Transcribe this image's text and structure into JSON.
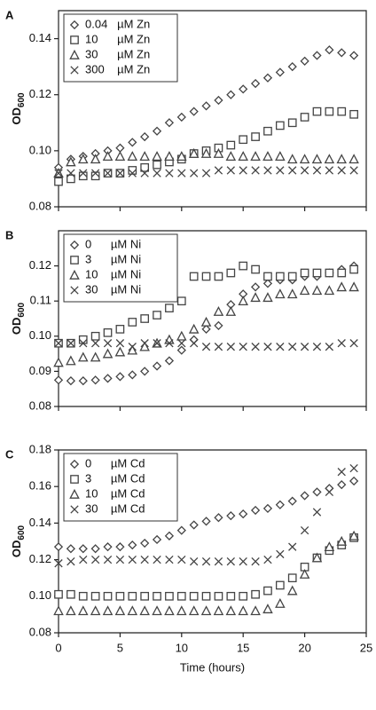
{
  "chart_data": [
    {
      "type": "scatter",
      "label": "A",
      "ylabel": "OD",
      "ylabel_subscript": "600",
      "x": [
        0,
        1,
        2,
        3,
        4,
        5,
        6,
        7,
        8,
        9,
        10,
        11,
        12,
        13,
        14,
        15,
        16,
        17,
        18,
        19,
        20,
        21,
        22,
        23,
        24
      ],
      "xlim": [
        0,
        25
      ],
      "xticks": [
        0,
        5,
        10,
        15,
        20,
        25
      ],
      "xtick_labels": false,
      "ylim": [
        0.08,
        0.15
      ],
      "yticks": [
        0.08,
        {
          "value": 0.1,
          "label": "0.10"
        },
        0.12,
        0.14
      ],
      "series": [
        {
          "name": "0.04   µM Zn",
          "marker": "diamond",
          "color": "#444",
          "values": [
            0.094,
            0.097,
            0.098,
            0.099,
            0.1,
            0.101,
            0.103,
            0.105,
            0.107,
            0.11,
            0.112,
            0.114,
            0.116,
            0.118,
            0.12,
            0.122,
            0.124,
            0.126,
            0.128,
            0.13,
            0.132,
            0.134,
            0.136,
            0.135,
            0.134
          ]
        },
        {
          "name": "10      µM Zn",
          "marker": "square",
          "color": "#444",
          "values": [
            0.089,
            0.09,
            0.091,
            0.091,
            0.092,
            0.092,
            0.093,
            0.094,
            0.095,
            0.096,
            0.097,
            0.099,
            0.1,
            0.101,
            0.102,
            0.104,
            0.105,
            0.107,
            0.109,
            0.11,
            0.112,
            0.114,
            0.114,
            0.114,
            0.113
          ]
        },
        {
          "name": "30      µM Zn",
          "marker": "triangle",
          "color": "#444",
          "values": [
            0.092,
            0.096,
            0.097,
            0.097,
            0.098,
            0.098,
            0.098,
            0.098,
            0.098,
            0.098,
            0.098,
            0.099,
            0.099,
            0.099,
            0.098,
            0.098,
            0.098,
            0.098,
            0.098,
            0.097,
            0.097,
            0.097,
            0.097,
            0.097,
            0.097
          ]
        },
        {
          "name": "300    µM Zn",
          "marker": "x",
          "color": "#444",
          "values": [
            0.092,
            0.092,
            0.092,
            0.092,
            0.092,
            0.092,
            0.092,
            0.092,
            0.092,
            0.092,
            0.092,
            0.092,
            0.092,
            0.093,
            0.093,
            0.093,
            0.093,
            0.093,
            0.093,
            0.093,
            0.093,
            0.093,
            0.093,
            0.093,
            0.093
          ]
        }
      ]
    },
    {
      "type": "scatter",
      "label": "B",
      "ylabel": "OD",
      "ylabel_subscript": "600",
      "x": [
        0,
        1,
        2,
        3,
        4,
        5,
        6,
        7,
        8,
        9,
        10,
        11,
        12,
        13,
        14,
        15,
        16,
        17,
        18,
        19,
        20,
        21,
        22,
        23,
        24
      ],
      "xlim": [
        0,
        25
      ],
      "xticks": [
        0,
        5,
        10,
        15,
        20,
        25
      ],
      "xtick_labels": false,
      "ylim": [
        0.08,
        0.13
      ],
      "yticks": [
        0.08,
        0.09,
        {
          "value": 0.1,
          "label": "0.10"
        },
        0.11,
        0.12
      ],
      "series": [
        {
          "name": "0      µM Ni",
          "marker": "diamond",
          "color": "#444",
          "values": [
            0.0875,
            0.0873,
            0.0873,
            0.0875,
            0.088,
            0.0885,
            0.089,
            0.09,
            0.0915,
            0.093,
            0.096,
            0.099,
            0.102,
            0.103,
            0.109,
            0.112,
            0.114,
            0.115,
            0.116,
            0.116,
            0.117,
            0.117,
            0.118,
            0.119,
            0.12
          ]
        },
        {
          "name": "3      µM Ni",
          "marker": "square",
          "color": "#444",
          "values": [
            0.098,
            0.098,
            0.099,
            0.1,
            0.101,
            0.102,
            0.104,
            0.105,
            0.106,
            0.108,
            0.11,
            0.117,
            0.117,
            0.117,
            0.118,
            0.12,
            0.119,
            0.117,
            0.117,
            0.117,
            0.118,
            0.118,
            0.118,
            0.118,
            0.119
          ]
        },
        {
          "name": "10    µM Ni",
          "marker": "triangle",
          "color": "#444",
          "values": [
            0.0925,
            0.093,
            0.094,
            0.094,
            0.095,
            0.0955,
            0.096,
            0.097,
            0.098,
            0.099,
            0.1,
            0.102,
            0.104,
            0.107,
            0.107,
            0.11,
            0.111,
            0.111,
            0.112,
            0.112,
            0.113,
            0.113,
            0.113,
            0.114,
            0.114
          ]
        },
        {
          "name": "30    µM Ni",
          "marker": "x",
          "color": "#444",
          "values": [
            0.098,
            0.098,
            0.098,
            0.098,
            0.098,
            0.098,
            0.097,
            0.098,
            0.098,
            0.098,
            0.098,
            0.098,
            0.097,
            0.097,
            0.097,
            0.097,
            0.097,
            0.097,
            0.097,
            0.097,
            0.097,
            0.097,
            0.097,
            0.098,
            0.098
          ]
        }
      ]
    },
    {
      "type": "scatter",
      "label": "C",
      "ylabel": "OD",
      "ylabel_subscript": "600",
      "xlabel": "Time (hours)",
      "x": [
        0,
        1,
        2,
        3,
        4,
        5,
        6,
        7,
        8,
        9,
        10,
        11,
        12,
        13,
        14,
        15,
        16,
        17,
        18,
        19,
        20,
        21,
        22,
        23,
        24
      ],
      "xlim": [
        0,
        25
      ],
      "xticks": [
        0,
        5,
        10,
        15,
        20,
        25
      ],
      "xtick_labels": true,
      "ylim": [
        0.08,
        0.18
      ],
      "yticks": [
        0.08,
        {
          "value": 0.1,
          "label": "0.10"
        },
        0.12,
        0.14,
        0.16,
        0.18
      ],
      "series": [
        {
          "name": "0      µM Cd",
          "marker": "diamond",
          "color": "#444",
          "values": [
            0.127,
            0.126,
            0.126,
            0.126,
            0.127,
            0.127,
            0.128,
            0.129,
            0.131,
            0.133,
            0.136,
            0.139,
            0.141,
            0.143,
            0.144,
            0.145,
            0.147,
            0.148,
            0.15,
            0.152,
            0.155,
            0.157,
            0.159,
            0.161,
            0.163
          ]
        },
        {
          "name": "3      µM Cd",
          "marker": "square",
          "color": "#444",
          "values": [
            0.101,
            0.101,
            0.1,
            0.1,
            0.1,
            0.1,
            0.1,
            0.1,
            0.1,
            0.1,
            0.1,
            0.1,
            0.1,
            0.1,
            0.1,
            0.1,
            0.101,
            0.103,
            0.106,
            0.11,
            0.116,
            0.121,
            0.125,
            0.128,
            0.132
          ]
        },
        {
          "name": "10    µM Cd",
          "marker": "triangle",
          "color": "#444",
          "values": [
            0.092,
            0.092,
            0.092,
            0.092,
            0.092,
            0.092,
            0.092,
            0.092,
            0.092,
            0.092,
            0.092,
            0.092,
            0.092,
            0.092,
            0.092,
            0.092,
            0.092,
            0.093,
            0.096,
            0.103,
            0.112,
            0.121,
            0.127,
            0.13,
            0.133
          ]
        },
        {
          "name": "30    µM Cd",
          "marker": "x",
          "color": "#444",
          "values": [
            0.118,
            0.119,
            0.12,
            0.12,
            0.12,
            0.12,
            0.12,
            0.12,
            0.12,
            0.12,
            0.12,
            0.119,
            0.119,
            0.119,
            0.119,
            0.119,
            0.119,
            0.12,
            0.123,
            0.127,
            0.136,
            0.146,
            0.157,
            0.168,
            0.17
          ]
        }
      ]
    }
  ]
}
